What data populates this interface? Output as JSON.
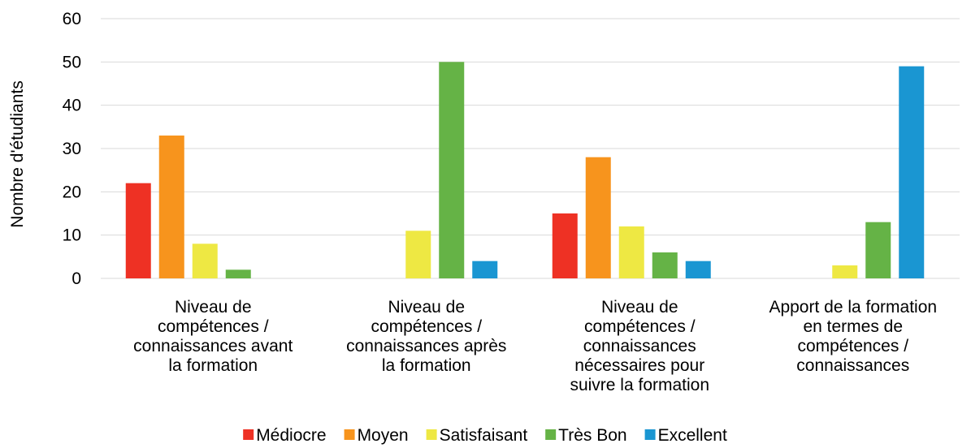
{
  "chart_data": {
    "type": "bar",
    "ylabel": "Nombre d'étudiants",
    "categories": [
      "Niveau de\ncompétences /\nconnaissances avant\nla formation",
      "Niveau de\ncompétences /\nconnaissances après\nla formation",
      "Niveau de\ncompétences /\nconnaissances\nnécessaires pour\nsuivre  la formation",
      "Apport de la formation\nen termes de\ncompétences /\nconnaissances"
    ],
    "series": [
      {
        "name": "Médiocre",
        "color": "#ee3124",
        "values": [
          22,
          0,
          15,
          0
        ]
      },
      {
        "name": "Moyen",
        "color": "#f7941d",
        "values": [
          33,
          0,
          28,
          0
        ]
      },
      {
        "name": "Satisfaisant",
        "color": "#eee843",
        "values": [
          8,
          11,
          12,
          3
        ]
      },
      {
        "name": "Très Bon",
        "color": "#65b346",
        "values": [
          2,
          50,
          6,
          13
        ]
      },
      {
        "name": "Excellent",
        "color": "#1a96d2",
        "values": [
          0,
          4,
          4,
          49
        ]
      }
    ],
    "ylim": [
      0,
      60
    ],
    "yticks": [
      0,
      10,
      20,
      30,
      40,
      50,
      60
    ],
    "grid": true,
    "legend": "bottom"
  }
}
